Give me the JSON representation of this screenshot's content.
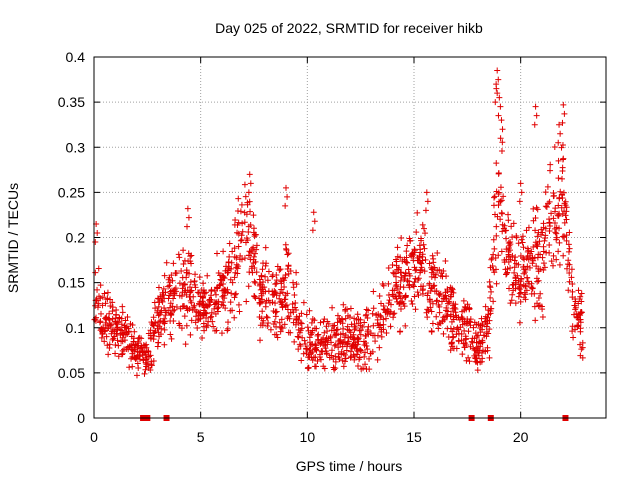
{
  "chart_data": {
    "type": "scatter",
    "title": "Day 025 of 2022, SRMTID for receiver hikb",
    "xlabel": "GPS time / hours",
    "ylabel": "SRMTID / TECUs",
    "xlim": [
      0,
      24
    ],
    "ylim": [
      0,
      0.4
    ],
    "x_ticks": [
      0,
      5,
      10,
      15,
      20
    ],
    "y_ticks": [
      0,
      0.05,
      0.1,
      0.15,
      0.2,
      0.25,
      0.3,
      0.35,
      0.4
    ],
    "x_tick_labels": [
      "0",
      "5",
      "10",
      "15",
      "20"
    ],
    "y_tick_labels": [
      "0",
      "0.05",
      "0.1",
      "0.15",
      "0.2",
      "0.25",
      "0.3",
      "0.35",
      "0.4"
    ],
    "grid": true,
    "marker": "plus",
    "series_color": "#e00000",
    "zero_markers_x": [
      2.3,
      2.5,
      3.4,
      17.7,
      18.6,
      22.1
    ],
    "envelope": [
      [
        0.0,
        0.11,
        0.03
      ],
      [
        0.2,
        0.13,
        0.04
      ],
      [
        0.5,
        0.1,
        0.03
      ],
      [
        1.0,
        0.1,
        0.03
      ],
      [
        1.5,
        0.09,
        0.03
      ],
      [
        2.0,
        0.075,
        0.02
      ],
      [
        2.5,
        0.07,
        0.02
      ],
      [
        3.0,
        0.11,
        0.04
      ],
      [
        3.5,
        0.13,
        0.04
      ],
      [
        4.0,
        0.14,
        0.04
      ],
      [
        4.5,
        0.14,
        0.04
      ],
      [
        5.0,
        0.12,
        0.03
      ],
      [
        5.5,
        0.13,
        0.03
      ],
      [
        6.0,
        0.14,
        0.04
      ],
      [
        6.5,
        0.16,
        0.05
      ],
      [
        7.0,
        0.19,
        0.05
      ],
      [
        7.3,
        0.2,
        0.05
      ],
      [
        7.8,
        0.14,
        0.04
      ],
      [
        8.5,
        0.13,
        0.04
      ],
      [
        9.0,
        0.15,
        0.05
      ],
      [
        9.5,
        0.11,
        0.04
      ],
      [
        10.0,
        0.08,
        0.03
      ],
      [
        10.5,
        0.08,
        0.03
      ],
      [
        11.0,
        0.09,
        0.03
      ],
      [
        11.5,
        0.09,
        0.03
      ],
      [
        12.0,
        0.09,
        0.03
      ],
      [
        12.5,
        0.08,
        0.03
      ],
      [
        13.0,
        0.1,
        0.03
      ],
      [
        13.5,
        0.11,
        0.04
      ],
      [
        14.0,
        0.14,
        0.04
      ],
      [
        14.5,
        0.15,
        0.04
      ],
      [
        15.0,
        0.16,
        0.05
      ],
      [
        15.5,
        0.18,
        0.05
      ],
      [
        16.0,
        0.13,
        0.04
      ],
      [
        16.5,
        0.12,
        0.04
      ],
      [
        17.0,
        0.1,
        0.03
      ],
      [
        17.5,
        0.1,
        0.03
      ],
      [
        18.0,
        0.08,
        0.03
      ],
      [
        18.5,
        0.1,
        0.03
      ],
      [
        18.8,
        0.2,
        0.06
      ],
      [
        19.0,
        0.25,
        0.08
      ],
      [
        19.5,
        0.17,
        0.05
      ],
      [
        20.0,
        0.15,
        0.04
      ],
      [
        20.5,
        0.17,
        0.05
      ],
      [
        21.0,
        0.19,
        0.06
      ],
      [
        21.5,
        0.22,
        0.06
      ],
      [
        22.0,
        0.24,
        0.06
      ],
      [
        22.5,
        0.12,
        0.04
      ],
      [
        23.0,
        0.1,
        0.03
      ]
    ],
    "spikes": [
      [
        18.9,
        0.385
      ],
      [
        18.85,
        0.37
      ],
      [
        19.0,
        0.355
      ],
      [
        20.7,
        0.345
      ],
      [
        22.0,
        0.347
      ],
      [
        21.8,
        0.325
      ],
      [
        19.1,
        0.33
      ],
      [
        0.1,
        0.215
      ],
      [
        4.4,
        0.232
      ],
      [
        7.3,
        0.27
      ],
      [
        9.0,
        0.255
      ],
      [
        10.3,
        0.228
      ],
      [
        15.6,
        0.25
      ],
      [
        20.0,
        0.26
      ]
    ]
  }
}
